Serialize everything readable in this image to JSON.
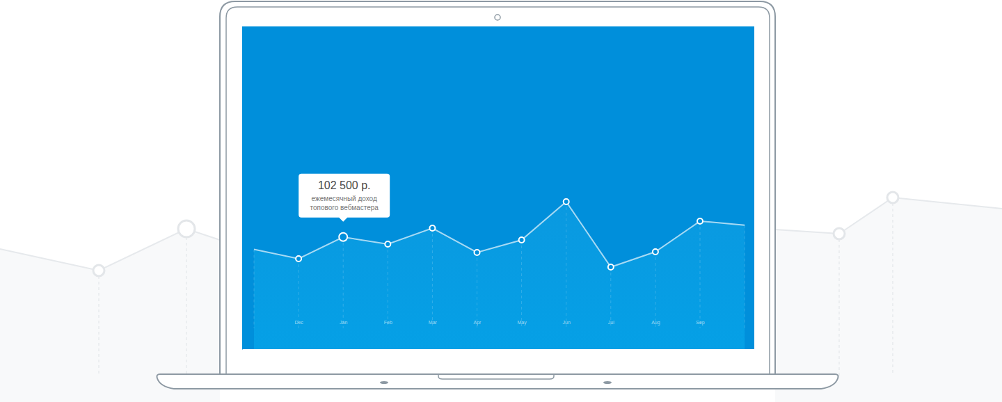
{
  "chart_data": {
    "type": "line",
    "categories": [
      null,
      "Dec",
      "Jan",
      "Feb",
      "Mar",
      "Apr",
      "May",
      "Jun",
      "Jul",
      "Aug",
      "Sep",
      null
    ],
    "values": [
      91200,
      82700,
      102500,
      96000,
      110600,
      88400,
      99800,
      134800,
      75000,
      89000,
      117000,
      113400
    ],
    "ylim": [
      0,
      295000
    ],
    "tick_labels": "x",
    "color": "#ffffff",
    "marker": "circle",
    "annotations": [
      {
        "category": "Jan",
        "label": "102 500 р.",
        "text": [
          "ежемесячный доход",
          "топового вебмастера"
        ]
      }
    ]
  }
}
